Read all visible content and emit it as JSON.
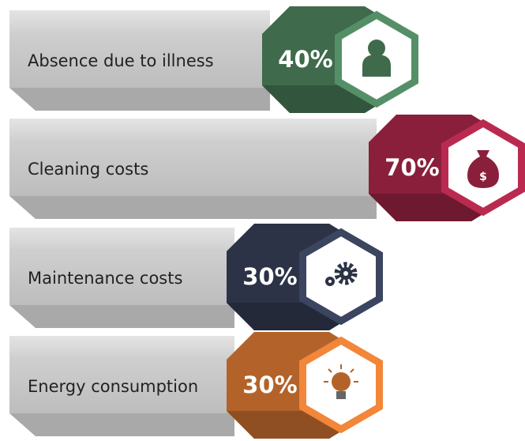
{
  "chart_data": {
    "type": "bar",
    "orientation": "horizontal",
    "categories": [
      "Absence due to illness",
      "Cleaning costs",
      "Maintenance costs",
      "Energy consumption"
    ],
    "values": [
      40,
      70,
      30,
      30
    ],
    "value_labels": [
      "40%",
      "70%",
      "30%",
      "30%"
    ],
    "colors": [
      "#3f6a4c",
      "#8a1f3b",
      "#2c3346",
      "#b3632a"
    ]
  }
}
